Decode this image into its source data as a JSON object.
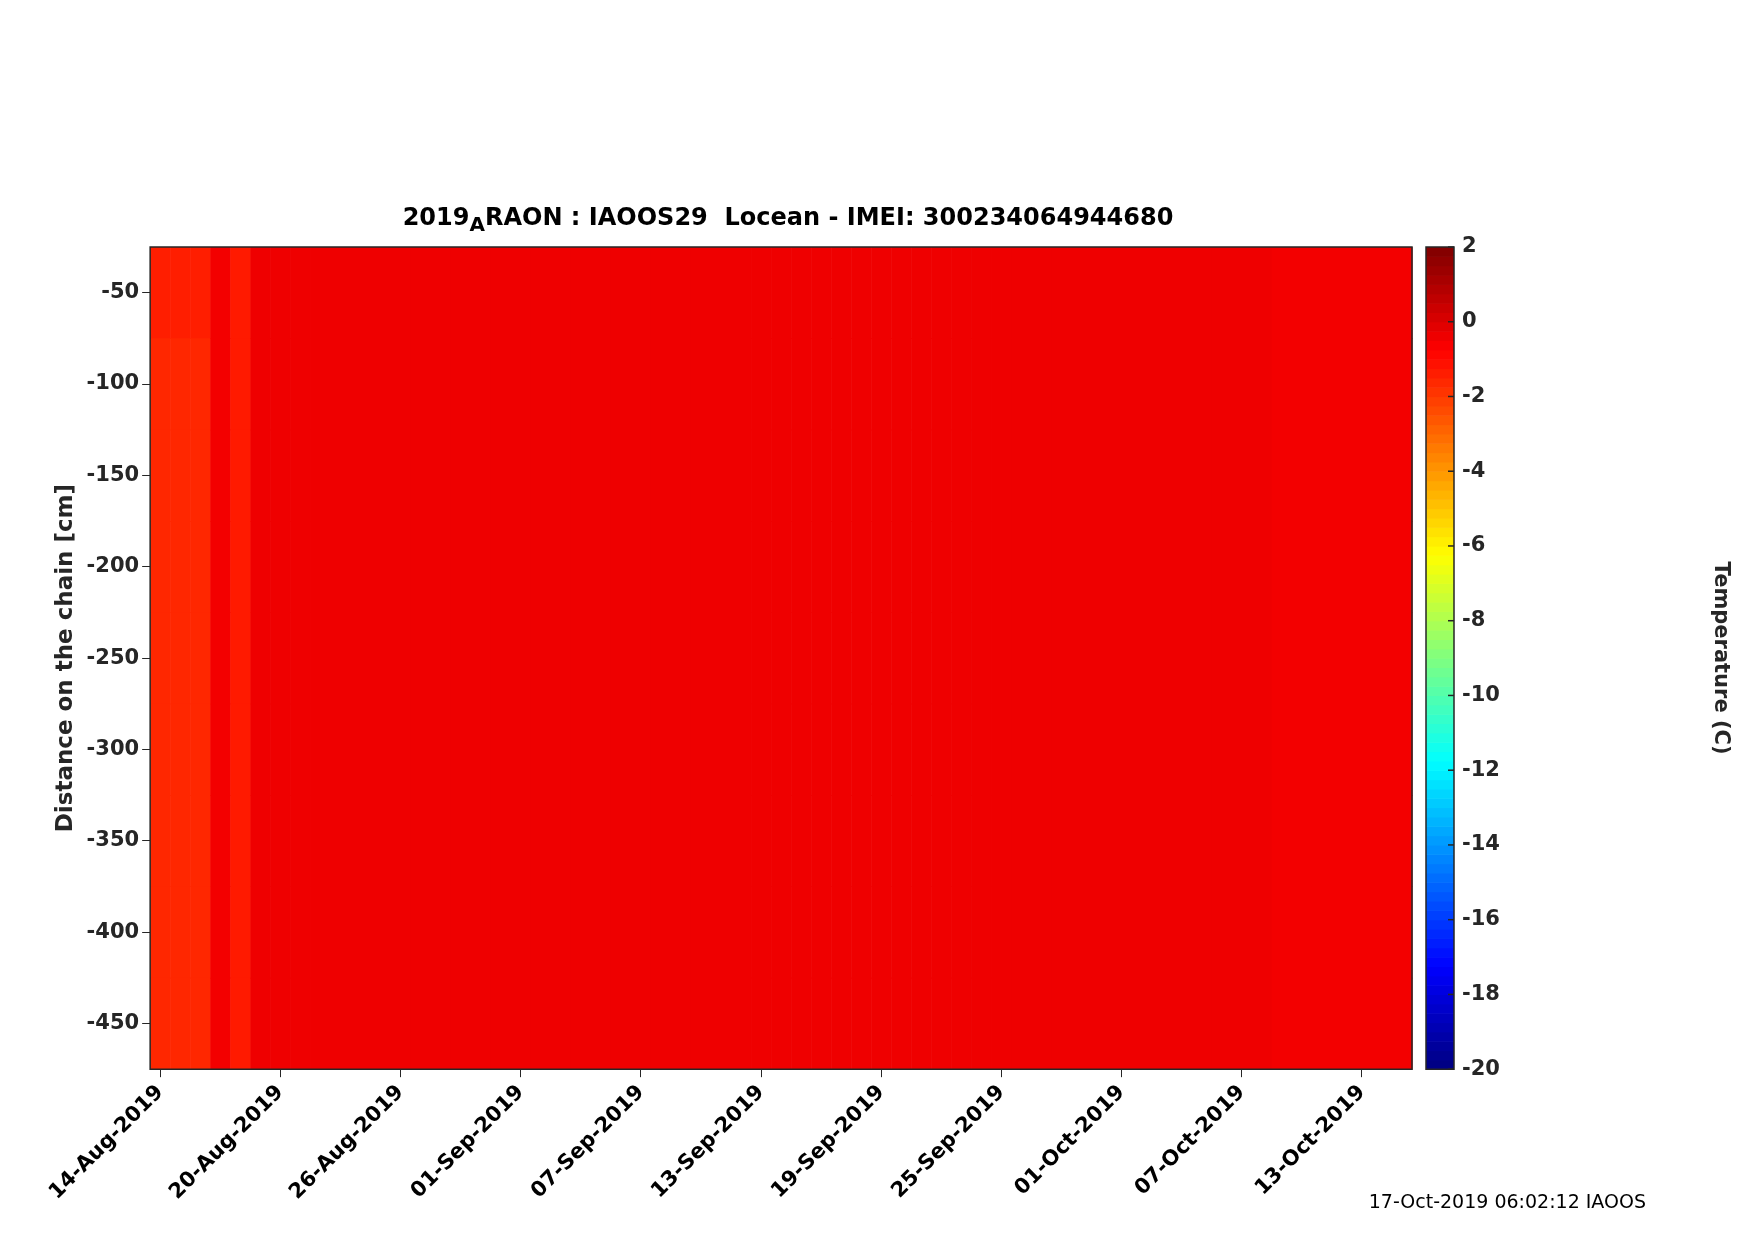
{
  "chart_data": {
    "type": "heatmap",
    "title": "2019$_{A}$RAON : IAOOS29  Locean - IMEI: 300234064944680",
    "ylabel": "Distance on the chain [cm]",
    "clabel": "Temperature (C)",
    "annotations": [
      "17-Oct-2019 06:02:12 IAOOS"
    ],
    "categories": [
      "14-Aug-2019",
      null,
      null,
      null,
      null,
      null,
      "20-Aug-2019",
      null,
      null,
      null,
      null,
      null,
      "26-Aug-2019",
      null,
      null,
      null,
      null,
      null,
      "01-Sep-2019",
      null,
      null,
      null,
      null,
      null,
      "07-Sep-2019",
      null,
      null,
      null,
      null,
      null,
      "13-Sep-2019",
      null,
      null,
      null,
      null,
      null,
      "19-Sep-2019",
      null,
      null,
      null,
      null,
      null,
      "25-Sep-2019",
      null,
      null,
      null,
      null,
      null,
      "01-Oct-2019",
      null,
      null,
      null,
      null,
      null,
      "07-Oct-2019",
      null,
      null,
      null,
      null,
      null,
      "13-Oct-2019",
      null,
      null
    ],
    "y_categories": [
      "-50",
      "-100",
      "-150",
      "-200",
      "-250",
      "-300",
      "-350",
      "-400",
      "-450"
    ],
    "cells": [
      [
        -1.4,
        -1.4,
        -1.4,
        -0.5,
        -1.3,
        -0.4,
        -0.4,
        -0.4,
        -0.4,
        -0.4,
        -0.4,
        -0.4,
        -0.4,
        -0.4,
        -0.4,
        -0.4,
        -0.4,
        -0.4,
        -0.4,
        -0.4,
        -0.4,
        -0.4,
        -0.4,
        -0.4,
        -0.4,
        -0.4,
        -0.4,
        -0.4,
        -0.4,
        -0.4,
        -0.4,
        -0.4,
        -0.4,
        -0.4,
        -0.4,
        -0.4,
        -0.4,
        -0.4,
        -0.4,
        -0.4,
        -0.4,
        -0.4,
        -0.4,
        -0.4,
        -0.4,
        -0.4,
        -0.4,
        -0.4,
        -0.4,
        -0.4,
        -0.4,
        -0.4,
        -0.4,
        -0.4,
        -0.4,
        -0.4,
        -0.5,
        -0.5,
        -0.5,
        -0.5,
        -0.5,
        -0.5,
        -0.5
      ],
      [
        -1.6,
        -1.6,
        -1.6,
        -0.5,
        -1.3,
        -0.4,
        -0.4,
        -0.4,
        -0.4,
        -0.4,
        -0.4,
        -0.4,
        -0.4,
        -0.4,
        -0.4,
        -0.4,
        -0.4,
        -0.4,
        -0.4,
        -0.4,
        -0.4,
        -0.4,
        -0.4,
        -0.4,
        -0.4,
        -0.4,
        -0.4,
        -0.4,
        -0.4,
        -0.4,
        -0.4,
        -0.4,
        -0.4,
        -0.4,
        -0.4,
        -0.4,
        -0.4,
        -0.4,
        -0.4,
        -0.4,
        -0.4,
        -0.4,
        -0.4,
        -0.4,
        -0.4,
        -0.4,
        -0.4,
        -0.4,
        -0.4,
        -0.4,
        -0.4,
        -0.4,
        -0.4,
        -0.4,
        -0.4,
        -0.4,
        -0.5,
        -0.5,
        -0.5,
        -0.5,
        -0.5,
        -0.5,
        -0.5
      ],
      [
        -1.6,
        -1.6,
        -1.6,
        -0.5,
        -1.3,
        -0.4,
        -0.4,
        -0.4,
        -0.4,
        -0.4,
        -0.4,
        -0.4,
        -0.4,
        -0.4,
        -0.4,
        -0.4,
        -0.4,
        -0.4,
        -0.4,
        -0.4,
        -0.4,
        -0.4,
        -0.4,
        -0.4,
        -0.4,
        -0.4,
        -0.4,
        -0.4,
        -0.4,
        -0.4,
        -0.4,
        -0.4,
        -0.4,
        -0.4,
        -0.4,
        -0.4,
        -0.4,
        -0.4,
        -0.4,
        -0.4,
        -0.4,
        -0.4,
        -0.4,
        -0.4,
        -0.4,
        -0.4,
        -0.4,
        -0.4,
        -0.4,
        -0.4,
        -0.4,
        -0.4,
        -0.4,
        -0.4,
        -0.4,
        -0.4,
        -0.5,
        -0.5,
        -0.5,
        -0.5,
        -0.5,
        -0.5,
        -0.5
      ],
      [
        -1.6,
        -1.6,
        -1.6,
        -0.5,
        -1.3,
        -0.4,
        -0.4,
        -0.4,
        -0.4,
        -0.4,
        -0.4,
        -0.4,
        -0.4,
        -0.4,
        -0.4,
        -0.4,
        -0.4,
        -0.4,
        -0.4,
        -0.4,
        -0.4,
        -0.4,
        -0.4,
        -0.4,
        -0.4,
        -0.4,
        -0.4,
        -0.4,
        -0.4,
        -0.4,
        -0.4,
        -0.4,
        -0.4,
        -0.4,
        -0.4,
        -0.4,
        -0.4,
        -0.4,
        -0.4,
        -0.4,
        -0.4,
        -0.4,
        -0.4,
        -0.4,
        -0.4,
        -0.4,
        -0.4,
        -0.4,
        -0.4,
        -0.4,
        -0.4,
        -0.4,
        -0.4,
        -0.4,
        -0.4,
        -0.4,
        -0.5,
        -0.5,
        -0.5,
        -0.5,
        -0.5,
        -0.5,
        -0.5
      ],
      [
        -1.6,
        -1.6,
        -1.6,
        -0.5,
        -1.3,
        -0.4,
        -0.4,
        -0.4,
        -0.4,
        -0.4,
        -0.4,
        -0.4,
        -0.4,
        -0.4,
        -0.4,
        -0.4,
        -0.4,
        -0.4,
        -0.4,
        -0.4,
        -0.4,
        -0.4,
        -0.4,
        -0.4,
        -0.4,
        -0.4,
        -0.4,
        -0.4,
        -0.4,
        -0.4,
        -0.4,
        -0.4,
        -0.4,
        -0.4,
        -0.4,
        -0.4,
        -0.4,
        -0.4,
        -0.4,
        -0.4,
        -0.4,
        -0.4,
        -0.4,
        -0.4,
        -0.4,
        -0.4,
        -0.4,
        -0.4,
        -0.4,
        -0.4,
        -0.4,
        -0.4,
        -0.4,
        -0.4,
        -0.4,
        -0.4,
        -0.5,
        -0.5,
        -0.5,
        -0.5,
        -0.5,
        -0.5,
        -0.5
      ],
      [
        -1.6,
        -1.6,
        -1.6,
        -0.5,
        -1.3,
        -0.4,
        -0.4,
        -0.4,
        -0.4,
        -0.4,
        -0.4,
        -0.4,
        -0.4,
        -0.4,
        -0.4,
        -0.4,
        -0.4,
        -0.4,
        -0.4,
        -0.4,
        -0.4,
        -0.4,
        -0.4,
        -0.4,
        -0.4,
        -0.4,
        -0.4,
        -0.4,
        -0.4,
        -0.4,
        -0.4,
        -0.4,
        -0.4,
        -0.4,
        -0.4,
        -0.4,
        -0.4,
        -0.4,
        -0.4,
        -0.4,
        -0.4,
        -0.4,
        -0.4,
        -0.4,
        -0.4,
        -0.4,
        -0.4,
        -0.4,
        -0.4,
        -0.4,
        -0.4,
        -0.4,
        -0.4,
        -0.4,
        -0.4,
        -0.4,
        -0.5,
        -0.5,
        -0.5,
        -0.5,
        -0.5,
        -0.5,
        -0.5
      ],
      [
        -1.6,
        -1.6,
        -1.6,
        -0.5,
        -1.3,
        -0.4,
        -0.4,
        -0.4,
        -0.4,
        -0.4,
        -0.4,
        -0.4,
        -0.4,
        -0.4,
        -0.4,
        -0.4,
        -0.4,
        -0.4,
        -0.4,
        -0.4,
        -0.4,
        -0.4,
        -0.4,
        -0.4,
        -0.4,
        -0.4,
        -0.4,
        -0.4,
        -0.4,
        -0.4,
        -0.4,
        -0.4,
        -0.4,
        -0.4,
        -0.4,
        -0.4,
        -0.4,
        -0.4,
        -0.4,
        -0.4,
        -0.4,
        -0.4,
        -0.4,
        -0.4,
        -0.4,
        -0.4,
        -0.4,
        -0.4,
        -0.4,
        -0.4,
        -0.4,
        -0.4,
        -0.4,
        -0.4,
        -0.4,
        -0.4,
        -0.5,
        -0.5,
        -0.5,
        -0.5,
        -0.5,
        -0.5,
        -0.5
      ],
      [
        -1.6,
        -1.6,
        -1.6,
        -0.5,
        -1.3,
        -0.4,
        -0.4,
        -0.4,
        -0.4,
        -0.4,
        -0.4,
        -0.4,
        -0.4,
        -0.4,
        -0.4,
        -0.4,
        -0.4,
        -0.4,
        -0.4,
        -0.4,
        -0.4,
        -0.4,
        -0.4,
        -0.4,
        -0.4,
        -0.4,
        -0.4,
        -0.4,
        -0.4,
        -0.4,
        -0.4,
        -0.4,
        -0.4,
        -0.4,
        -0.4,
        -0.4,
        -0.4,
        -0.4,
        -0.4,
        -0.4,
        -0.4,
        -0.4,
        -0.4,
        -0.4,
        -0.4,
        -0.4,
        -0.4,
        -0.4,
        -0.4,
        -0.4,
        -0.4,
        -0.4,
        -0.4,
        -0.4,
        -0.4,
        -0.4,
        -0.5,
        -0.5,
        -0.5,
        -0.5,
        -0.5,
        -0.5,
        -0.5
      ],
      [
        -1.6,
        -1.6,
        -1.6,
        -0.5,
        -1.3,
        -0.4,
        -0.4,
        -0.4,
        -0.4,
        -0.4,
        -0.4,
        -0.4,
        -0.4,
        -0.4,
        -0.4,
        -0.4,
        -0.4,
        -0.4,
        -0.4,
        -0.4,
        -0.4,
        -0.4,
        -0.4,
        -0.4,
        -0.4,
        -0.4,
        -0.4,
        -0.4,
        -0.4,
        -0.4,
        -0.4,
        -0.4,
        -0.4,
        -0.4,
        -0.4,
        -0.4,
        -0.4,
        -0.4,
        -0.4,
        -0.4,
        -0.4,
        -0.4,
        -0.4,
        -0.4,
        -0.4,
        -0.4,
        -0.4,
        -0.4,
        -0.4,
        -0.4,
        -0.4,
        -0.4,
        -0.4,
        -0.4,
        -0.4,
        -0.4,
        -0.5,
        -0.5,
        -0.5,
        -0.5,
        -0.5,
        -0.5,
        -0.5
      ]
    ],
    "clim": [
      -20,
      2
    ],
    "cticks": [
      -20,
      -18,
      -16,
      -14,
      -12,
      -10,
      -8,
      -6,
      -4,
      -2,
      0,
      2
    ]
  }
}
